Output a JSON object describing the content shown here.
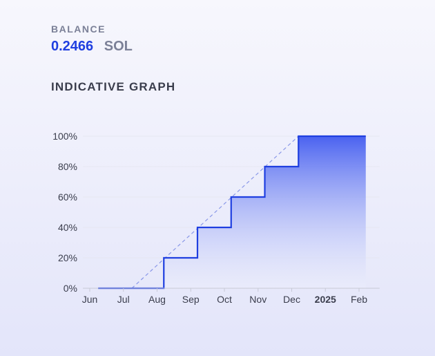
{
  "balance": {
    "label": "BALANCE",
    "value": "0.2466",
    "unit": "SOL"
  },
  "graph": {
    "title": "INDICATIVE GRAPH"
  },
  "colors": {
    "accent": "#1f3fe0",
    "muted": "#7b8097",
    "text": "#3a3d4c",
    "fill_top": "#4a62f0",
    "fill_bottom": "#eef0fc",
    "dashed": "#8a98e8",
    "grid": "#e6e7f2"
  },
  "chart_data": {
    "type": "line",
    "step": true,
    "x_ticks": [
      {
        "label": "Jun",
        "value": 0
      },
      {
        "label": "Jul",
        "value": 1
      },
      {
        "label": "Aug",
        "value": 2
      },
      {
        "label": "Sep",
        "value": 3
      },
      {
        "label": "Oct",
        "value": 4
      },
      {
        "label": "Nov",
        "value": 5
      },
      {
        "label": "Dec",
        "value": 6
      },
      {
        "label": "2025",
        "value": 7,
        "bold": true
      },
      {
        "label": "Feb",
        "value": 8
      }
    ],
    "y_ticks": [
      {
        "label": "0%",
        "value": 0
      },
      {
        "label": "20%",
        "value": 20
      },
      {
        "label": "40%",
        "value": 40
      },
      {
        "label": "60%",
        "value": 60
      },
      {
        "label": "80%",
        "value": 80
      },
      {
        "label": "100%",
        "value": 100
      }
    ],
    "ylim": [
      0,
      100
    ],
    "xlim": [
      0,
      8.2
    ],
    "series": [
      {
        "points": [
          [
            0.25,
            0
          ],
          [
            2.2,
            0
          ],
          [
            2.2,
            20
          ],
          [
            3.2,
            20
          ],
          [
            3.2,
            40
          ],
          [
            4.2,
            40
          ],
          [
            4.2,
            60
          ],
          [
            5.2,
            60
          ],
          [
            5.2,
            80
          ],
          [
            6.2,
            80
          ],
          [
            6.2,
            100
          ],
          [
            8.2,
            100
          ]
        ]
      }
    ],
    "reference_line": [
      [
        1.25,
        0
      ],
      [
        6.2,
        100
      ]
    ],
    "grid": true
  }
}
